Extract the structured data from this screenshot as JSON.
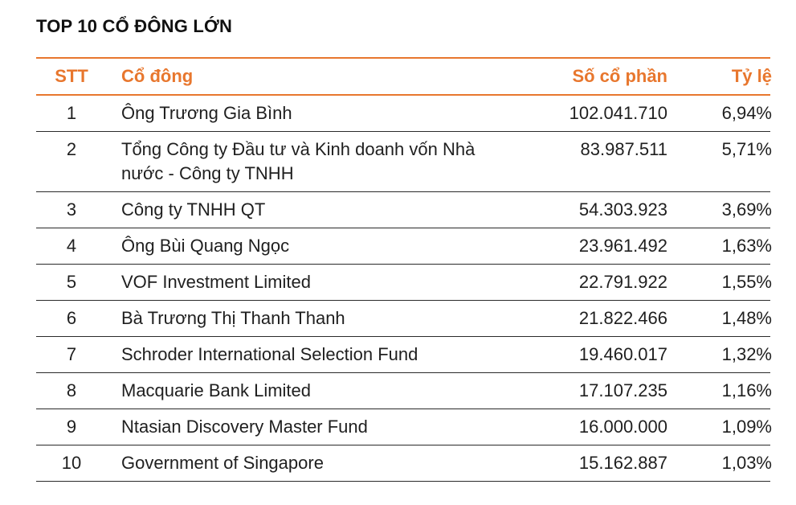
{
  "title": "TOP 10 CỔ ĐÔNG LỚN",
  "colors": {
    "accent": "#e8772e",
    "text": "#1f1f1f",
    "rule": "#2a2a2a"
  },
  "table": {
    "headers": {
      "stt": "STT",
      "name": "Cổ đông",
      "shares": "Số cổ phần",
      "ratio": "Tỷ lệ"
    },
    "rows": [
      {
        "stt": "1",
        "name": "Ông Trương Gia Bình",
        "shares": "102.041.710",
        "ratio": "6,94%"
      },
      {
        "stt": "2",
        "name": "Tổng Công ty Đầu tư và Kinh doanh vốn Nhà nước - Công ty TNHH",
        "shares": "83.987.511",
        "ratio": "5,71%"
      },
      {
        "stt": "3",
        "name": "Công ty TNHH QT",
        "shares": "54.303.923",
        "ratio": "3,69%"
      },
      {
        "stt": "4",
        "name": "Ông Bùi Quang Ngọc",
        "shares": "23.961.492",
        "ratio": "1,63%"
      },
      {
        "stt": "5",
        "name": "VOF Investment Limited",
        "shares": "22.791.922",
        "ratio": "1,55%"
      },
      {
        "stt": "6",
        "name": "Bà Trương Thị Thanh Thanh",
        "shares": "21.822.466",
        "ratio": "1,48%"
      },
      {
        "stt": "7",
        "name": "Schroder International Selection Fund",
        "shares": "19.460.017",
        "ratio": "1,32%"
      },
      {
        "stt": "8",
        "name": "Macquarie Bank Limited",
        "shares": "17.107.235",
        "ratio": "1,16%"
      },
      {
        "stt": "9",
        "name": "Ntasian Discovery Master Fund",
        "shares": "16.000.000",
        "ratio": "1,09%"
      },
      {
        "stt": "10",
        "name": "Government of Singapore",
        "shares": "15.162.887",
        "ratio": "1,03%"
      }
    ]
  }
}
